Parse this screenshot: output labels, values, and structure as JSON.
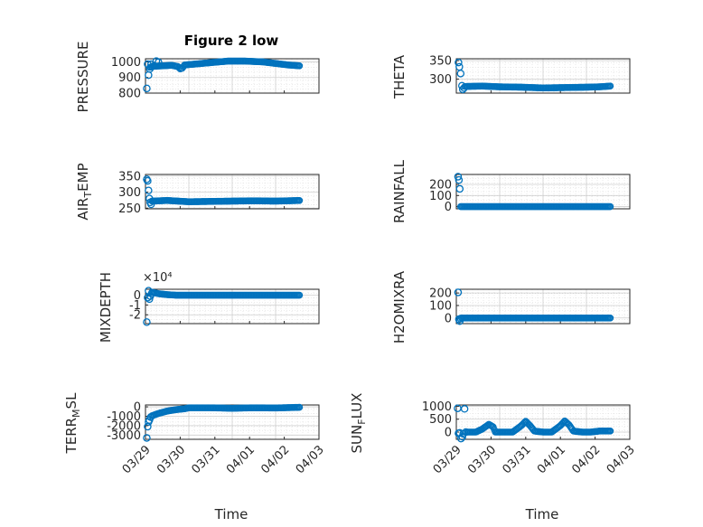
{
  "figure_title": "Figure 2 low",
  "x_axis_label": "Time",
  "x_tick_labels": [
    "03/29",
    "03/30",
    "03/31",
    "04/01",
    "04/02",
    "04/03"
  ],
  "colors": {
    "marker": "#0072BD",
    "grid": "#d9d9d9",
    "axis": "#262626"
  },
  "chart_data": [
    {
      "type": "scatter",
      "id": "pressure",
      "ylabel": "PRESSURE",
      "title": "Figure 2 low",
      "xlim": [
        0,
        4
      ],
      "ylim": [
        800,
        1020
      ],
      "yticks": [
        800,
        900,
        1000
      ],
      "ytick_labels": [
        "800",
        "900",
        "1000"
      ],
      "points": [
        [
          0.03,
          830
        ],
        [
          0.05,
          985
        ],
        [
          0.07,
          915
        ],
        [
          0.1,
          955
        ],
        [
          0.13,
          985
        ],
        [
          0.2,
          975
        ],
        [
          0.25,
          1005
        ],
        [
          0.3,
          998
        ]
      ],
      "curve": [
        [
          0.1,
          965
        ],
        [
          0.2,
          972
        ],
        [
          0.4,
          975
        ],
        [
          0.6,
          978
        ],
        [
          0.75,
          970
        ],
        [
          0.8,
          955
        ],
        [
          0.85,
          960
        ],
        [
          0.9,
          980
        ],
        [
          1.1,
          985
        ],
        [
          1.5,
          995
        ],
        [
          1.9,
          1005
        ],
        [
          2.3,
          1005
        ],
        [
          2.7,
          1000
        ],
        [
          3.0,
          990
        ],
        [
          3.3,
          980
        ],
        [
          3.55,
          975
        ]
      ]
    },
    {
      "type": "scatter",
      "id": "theta",
      "ylabel": "THETA",
      "xlim": [
        0,
        4
      ],
      "ylim": [
        262,
        355
      ],
      "yticks": [
        300,
        350
      ],
      "ytick_labels": [
        "300",
        "350"
      ],
      "points": [
        [
          0.05,
          345
        ],
        [
          0.07,
          333
        ],
        [
          0.1,
          315
        ],
        [
          0.13,
          282
        ],
        [
          0.15,
          272
        ],
        [
          0.18,
          276
        ]
      ],
      "curve": [
        [
          0.2,
          280
        ],
        [
          0.6,
          281
        ],
        [
          1.0,
          279
        ],
        [
          1.5,
          278
        ],
        [
          2.0,
          276
        ],
        [
          2.5,
          277
        ],
        [
          3.0,
          278
        ],
        [
          3.3,
          279
        ],
        [
          3.55,
          281
        ]
      ]
    },
    {
      "type": "scatter",
      "id": "air_temp",
      "ylabel_main": "AIR",
      "ylabel_sub": "T",
      "ylabel_tail": "EMP",
      "xlim": [
        0,
        4
      ],
      "ylim": [
        248,
        355
      ],
      "yticks": [
        250,
        300,
        350
      ],
      "ytick_labels": [
        "250",
        "300",
        "350"
      ],
      "points": [
        [
          0.03,
          340
        ],
        [
          0.05,
          335
        ],
        [
          0.07,
          305
        ],
        [
          0.09,
          280
        ],
        [
          0.11,
          268
        ],
        [
          0.13,
          262
        ]
      ],
      "curve": [
        [
          0.15,
          272
        ],
        [
          0.5,
          274
        ],
        [
          1.0,
          270
        ],
        [
          1.5,
          271
        ],
        [
          2.0,
          272
        ],
        [
          2.5,
          273
        ],
        [
          3.0,
          272
        ],
        [
          3.55,
          274
        ]
      ]
    },
    {
      "type": "scatter",
      "id": "rainfall",
      "ylabel": "RAINFALL",
      "xlim": [
        0,
        4
      ],
      "ylim": [
        -20,
        290
      ],
      "yticks": [
        0,
        100,
        200
      ],
      "ytick_labels": [
        "0",
        "100",
        "200"
      ],
      "points": [
        [
          0.04,
          270
        ],
        [
          0.06,
          240
        ],
        [
          0.08,
          160
        ]
      ],
      "curve": [
        [
          0.1,
          0
        ],
        [
          0.5,
          0
        ],
        [
          1.0,
          0
        ],
        [
          1.5,
          0
        ],
        [
          2.0,
          0
        ],
        [
          2.5,
          0
        ],
        [
          3.0,
          0
        ],
        [
          3.55,
          0
        ]
      ]
    },
    {
      "type": "scatter",
      "id": "mixdepth",
      "ylabel": "MIXDEPTH",
      "exponent": "×10⁴",
      "xlim": [
        0,
        4
      ],
      "ylim": [
        -2.9,
        0.6
      ],
      "yticks": [
        -2,
        -1,
        0
      ],
      "ytick_labels": [
        "-2",
        "-1",
        "0"
      ],
      "points": [
        [
          0.03,
          -2.75
        ],
        [
          0.05,
          -0.25
        ],
        [
          0.07,
          0.45
        ],
        [
          0.09,
          -0.4
        ],
        [
          0.11,
          -0.1
        ],
        [
          0.14,
          0.15
        ]
      ],
      "curve": [
        [
          0.15,
          0.3
        ],
        [
          0.3,
          0.15
        ],
        [
          0.5,
          0.05
        ],
        [
          0.7,
          0.0
        ],
        [
          1.0,
          0.0
        ],
        [
          2.0,
          0.0
        ],
        [
          3.0,
          0.0
        ],
        [
          3.55,
          0.0
        ]
      ]
    },
    {
      "type": "scatter",
      "id": "h2omixra",
      "ylabel": "H2OMIXRA",
      "xlim": [
        0,
        4
      ],
      "ylim": [
        -45,
        230
      ],
      "yticks": [
        0,
        100,
        200
      ],
      "ytick_labels": [
        "0",
        "100",
        "200"
      ],
      "points": [
        [
          0.04,
          205
        ],
        [
          0.06,
          -10
        ],
        [
          0.08,
          -25
        ],
        [
          0.1,
          -5
        ]
      ],
      "curve": [
        [
          0.12,
          0
        ],
        [
          0.5,
          0
        ],
        [
          1.0,
          0
        ],
        [
          1.5,
          0
        ],
        [
          2.0,
          0
        ],
        [
          2.5,
          0
        ],
        [
          3.0,
          0
        ],
        [
          3.55,
          0
        ]
      ]
    },
    {
      "type": "scatter",
      "id": "terr_msl",
      "ylabel_main": "TERR",
      "ylabel_sub": "M",
      "ylabel_tail": "SL",
      "xlim": [
        0,
        4
      ],
      "ylim": [
        -3450,
        200
      ],
      "yticks": [
        -3000,
        -2000,
        -1000,
        0
      ],
      "ytick_labels": [
        "-3000",
        "-2000",
        "-1000",
        "0"
      ],
      "points": [
        [
          0.03,
          -3300
        ],
        [
          0.05,
          -2100
        ],
        [
          0.07,
          -1600
        ],
        [
          0.09,
          -1400
        ],
        [
          0.12,
          -1100
        ]
      ],
      "curve": [
        [
          0.15,
          -950
        ],
        [
          0.3,
          -700
        ],
        [
          0.5,
          -450
        ],
        [
          0.7,
          -300
        ],
        [
          0.9,
          -200
        ],
        [
          1.0,
          -100
        ],
        [
          1.2,
          -100
        ],
        [
          1.5,
          -100
        ],
        [
          2.0,
          -150
        ],
        [
          2.5,
          -100
        ],
        [
          3.0,
          -120
        ],
        [
          3.55,
          -50
        ]
      ]
    },
    {
      "type": "scatter",
      "id": "sun_flux",
      "ylabel_main": "SUN",
      "ylabel_sub": "F",
      "ylabel_tail": "LUX",
      "xlim": [
        0,
        4
      ],
      "ylim": [
        -280,
        1050
      ],
      "yticks": [
        0,
        500,
        1000
      ],
      "ytick_labels": [
        "0",
        "500",
        "1000"
      ],
      "points": [
        [
          0.03,
          920
        ],
        [
          0.05,
          -50
        ],
        [
          0.08,
          -30
        ],
        [
          0.11,
          -250
        ],
        [
          0.14,
          -180
        ],
        [
          0.16,
          -70
        ],
        [
          0.19,
          900
        ],
        [
          0.22,
          0
        ]
      ],
      "curve": [
        [
          0.25,
          0
        ],
        [
          0.45,
          0
        ],
        [
          0.6,
          120
        ],
        [
          0.75,
          300
        ],
        [
          0.85,
          200
        ],
        [
          0.9,
          0
        ],
        [
          1.1,
          0
        ],
        [
          1.3,
          0
        ],
        [
          1.5,
          250
        ],
        [
          1.6,
          420
        ],
        [
          1.7,
          250
        ],
        [
          1.8,
          40
        ],
        [
          2.0,
          0
        ],
        [
          2.2,
          0
        ],
        [
          2.4,
          250
        ],
        [
          2.5,
          430
        ],
        [
          2.6,
          280
        ],
        [
          2.7,
          40
        ],
        [
          2.9,
          0
        ],
        [
          3.1,
          0
        ],
        [
          3.3,
          40
        ],
        [
          3.55,
          40
        ]
      ]
    }
  ]
}
